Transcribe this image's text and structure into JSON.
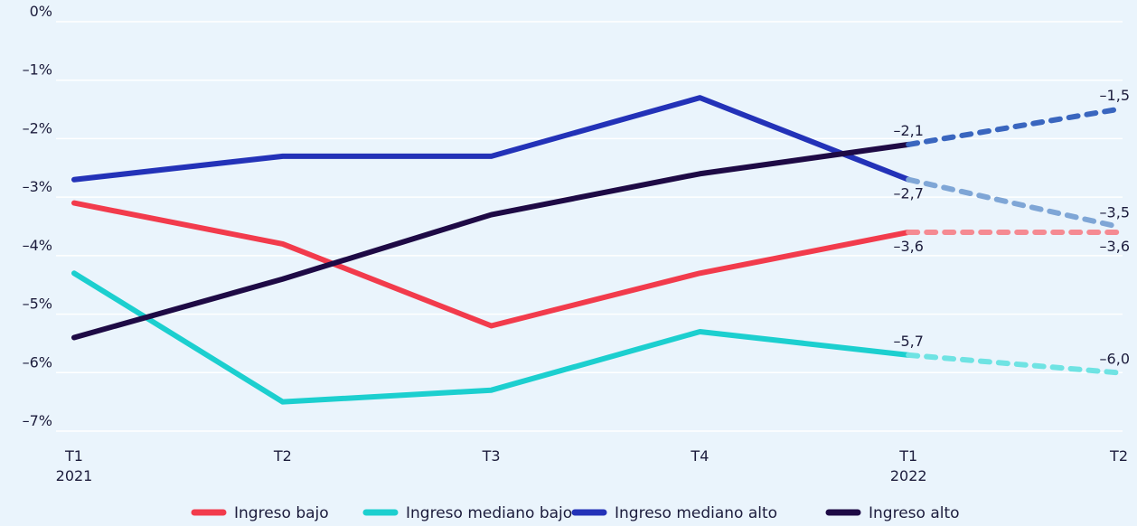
{
  "chart_data": {
    "type": "line",
    "title": "",
    "xlabel": "",
    "ylabel": "",
    "x_ticks": [
      {
        "label": "T1",
        "sublabel": "2021"
      },
      {
        "label": "T2",
        "sublabel": ""
      },
      {
        "label": "T3",
        "sublabel": ""
      },
      {
        "label": "T4",
        "sublabel": ""
      },
      {
        "label": "T1",
        "sublabel": "2022"
      },
      {
        "label": "T2",
        "sublabel": ""
      }
    ],
    "y_ticks": [
      0,
      -1,
      -2,
      -3,
      -4,
      -5,
      -6,
      -7
    ],
    "y_tick_labels": [
      "0%",
      "–1%",
      "–2%",
      "–3%",
      "–4%",
      "–5%",
      "–6%",
      "–7%"
    ],
    "ylim": [
      -7,
      0
    ],
    "grid": true,
    "legend_placement": "bottom-center",
    "projection_starts_at_index": 4,
    "series": [
      {
        "name": "Ingreso bajo",
        "color": "#f23b4c",
        "projection_color": "#f58a92",
        "values": [
          -3.1,
          -3.8,
          -5.2,
          -4.3,
          -3.6,
          -3.6
        ],
        "labels": [
          {
            "index": 4,
            "text": "–3,6",
            "position": "below"
          },
          {
            "index": 5,
            "text": "–3,6",
            "position": "below"
          }
        ]
      },
      {
        "name": "Ingreso mediano bajo",
        "color": "#1ccfcf",
        "projection_color": "#6fe3e3",
        "values": [
          -4.3,
          -6.5,
          -6.3,
          -5.3,
          -5.7,
          -6.0
        ],
        "labels": [
          {
            "index": 4,
            "text": "–5,7",
            "position": "above"
          },
          {
            "index": 5,
            "text": "–6,0",
            "position": "above"
          }
        ]
      },
      {
        "name": "Ingreso mediano alto",
        "color": "#2332b8",
        "projection_color": "#7fa6d6",
        "values": [
          -2.7,
          -2.3,
          -2.3,
          -1.3,
          -2.7,
          -3.5
        ],
        "labels": [
          {
            "index": 4,
            "text": "–2,7",
            "position": "below"
          },
          {
            "index": 5,
            "text": "–3,5",
            "position": "above"
          }
        ]
      },
      {
        "name": "Ingreso alto",
        "color": "#1e0a45",
        "projection_color": "#3a66bf",
        "values": [
          -5.4,
          -4.4,
          -3.3,
          -2.6,
          -2.1,
          -1.5
        ],
        "labels": [
          {
            "index": 4,
            "text": "–2,1",
            "position": "above"
          },
          {
            "index": 5,
            "text": "–1,5",
            "position": "above"
          }
        ]
      }
    ]
  }
}
